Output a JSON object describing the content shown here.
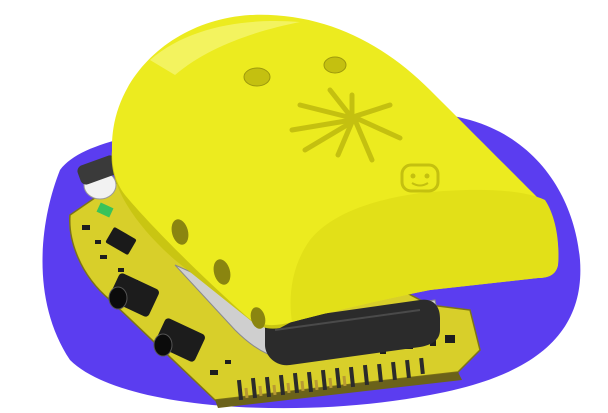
{
  "image": {
    "subject": "product-render",
    "colors": {
      "background": "#ffffff",
      "blob": "#5b3df0",
      "case_yellow": "#eceb1f",
      "case_shadow": "#c9c512",
      "board_yellow": "#d8cf2a",
      "board_dark": "#1e1e1e",
      "silver": "#cfcfcf",
      "charcoal": "#2b2b2b",
      "gold_pad": "#b89a33",
      "green_chip": "#39c35a"
    },
    "icons": [
      "sparkle-emblem-icon",
      "smiley-badge-icon"
    ]
  }
}
